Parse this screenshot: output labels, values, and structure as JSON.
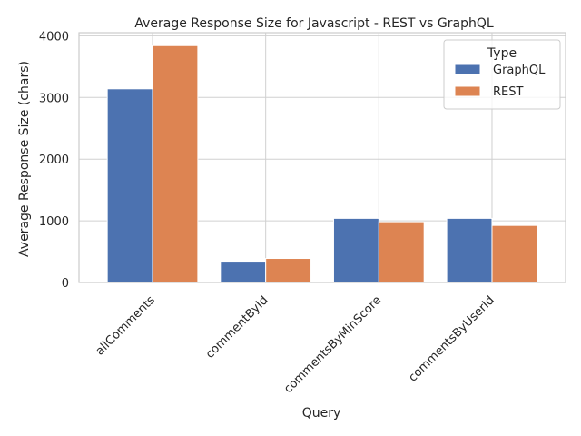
{
  "chart_data": {
    "type": "bar",
    "title": "Average Response Size for Javascript - REST vs GraphQL",
    "xlabel": "Query",
    "ylabel": "Average Response Size (chars)",
    "categories": [
      "allComments",
      "commentById",
      "commentsByMinScore",
      "commentsByUserId"
    ],
    "series": [
      {
        "name": "GraphQL",
        "color": "#4c72b0",
        "values": [
          3140,
          345,
          1040,
          1040
        ]
      },
      {
        "name": "REST",
        "color": "#dd8452",
        "values": [
          3840,
          390,
          985,
          925
        ]
      }
    ],
    "ylim": [
      0,
      4050
    ],
    "yticks": [
      0,
      1000,
      2000,
      3000,
      4000
    ],
    "grid": true,
    "legend": {
      "title": "Type",
      "placement": "top-right"
    }
  }
}
